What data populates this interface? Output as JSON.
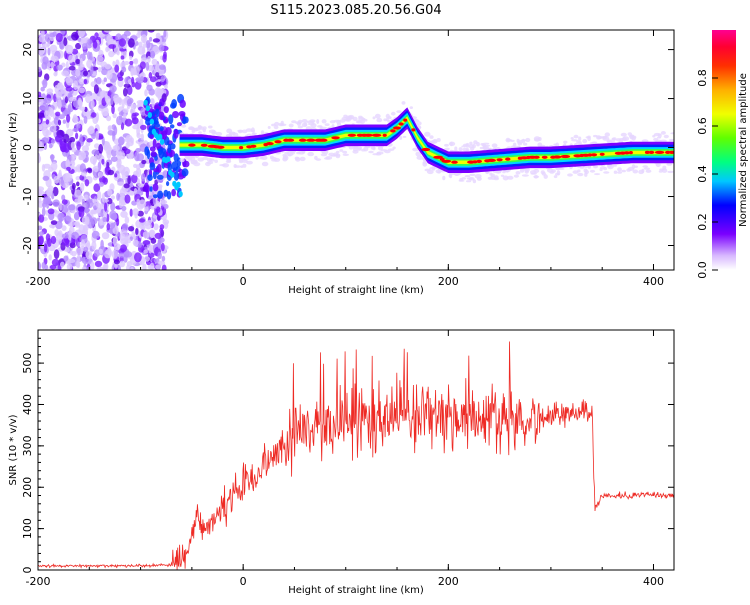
{
  "title": "S115.2023.085.20.56.G04",
  "colors": {
    "snr_line": "#ee2a24",
    "ridge": "#ff0000",
    "noise": "#6a00ff"
  },
  "chart_data": [
    {
      "type": "heatmap",
      "xlabel": "Height of straight line (km)",
      "ylabel": "Frequency (Hz)",
      "xlim": [
        -200,
        420
      ],
      "ylim": [
        -25,
        24
      ],
      "x_ticks": [
        -200,
        0,
        200,
        400
      ],
      "y_ticks": [
        -20,
        -10,
        0,
        10,
        20
      ],
      "colorbar": {
        "label": "Normalized spectral amplitude",
        "range": [
          0,
          1
        ],
        "ticks": [
          "0.0",
          "0.2",
          "0.4",
          "0.6",
          "0.8"
        ],
        "colormap": "rainbow (white-violet-blue-cyan-green-yellow-red-magenta)"
      },
      "ridge": {
        "x": [
          -60,
          -40,
          -20,
          0,
          20,
          40,
          60,
          80,
          100,
          120,
          140,
          150,
          160,
          170,
          180,
          200,
          220,
          250,
          280,
          300,
          340,
          380,
          420
        ],
        "y": [
          0.5,
          0.5,
          0,
          0,
          0.5,
          1.5,
          1.5,
          1.5,
          2.5,
          2.5,
          2.5,
          4,
          6,
          2,
          -1,
          -3,
          -3,
          -2.5,
          -2,
          -2,
          -1.5,
          -1,
          -1
        ]
      },
      "noise_region_x": [
        -200,
        -90
      ]
    },
    {
      "type": "line",
      "xlabel": "Height of straight line (km)",
      "ylabel": "SNR (10 * v/v)",
      "xlim": [
        -200,
        420
      ],
      "ylim": [
        0,
        580
      ],
      "x_ticks": [
        -200,
        0,
        200,
        400
      ],
      "y_ticks": [
        0,
        100,
        200,
        300,
        400,
        500
      ],
      "series": [
        {
          "x": [
            -200,
            -150,
            -100,
            -70,
            -55,
            -45,
            -40,
            -30,
            -20,
            -10,
            0,
            20,
            40,
            60,
            80,
            100,
            120,
            140,
            160,
            180,
            200,
            220,
            240,
            260,
            280,
            300,
            320,
            340,
            343,
            350,
            380,
            420
          ],
          "values": [
            10,
            10,
            10,
            12,
            40,
            140,
            90,
            120,
            150,
            170,
            200,
            250,
            300,
            340,
            350,
            355,
            360,
            365,
            365,
            370,
            365,
            370,
            375,
            370,
            370,
            370,
            380,
            380,
            150,
            180,
            180,
            180
          ]
        }
      ]
    }
  ]
}
